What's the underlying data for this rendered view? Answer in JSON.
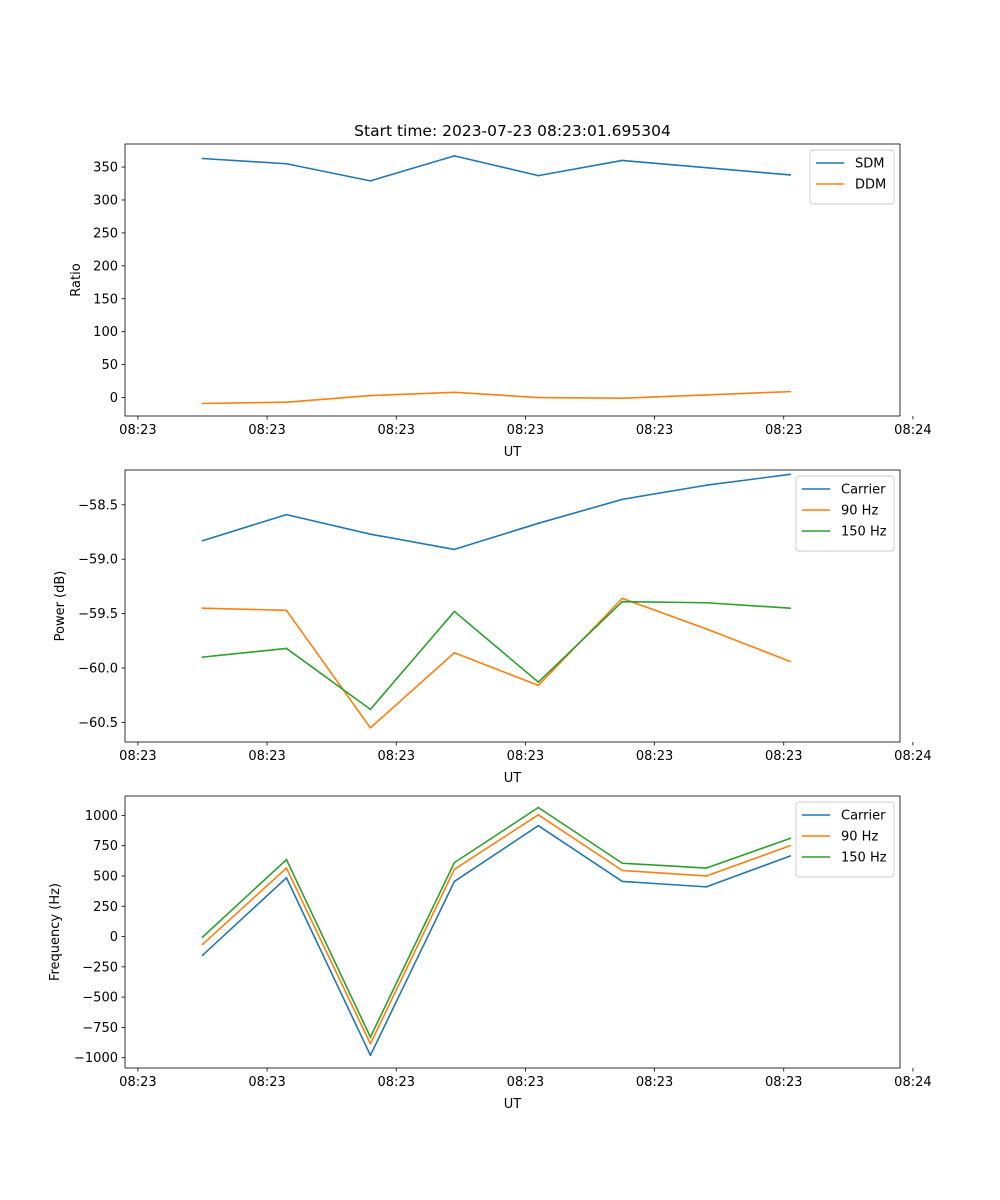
{
  "chart_data": [
    {
      "type": "line",
      "title": "Start time: 2023-07-23 08:23:01.695304",
      "xlabel": "UT",
      "ylabel": "Ratio",
      "x": [
        0.5,
        1.15,
        1.8,
        2.45,
        3.1,
        3.75,
        4.4,
        5.05
      ],
      "xlim": [
        -0.1,
        5.9
      ],
      "x_ticks": [
        0,
        1,
        2,
        3,
        4,
        5,
        6
      ],
      "x_tick_labels": [
        "08:23",
        "08:23",
        "08:23",
        "08:23",
        "08:23",
        "08:23",
        "08:24"
      ],
      "ylim": [
        -28,
        385
      ],
      "y_ticks": [
        0,
        50,
        100,
        150,
        200,
        250,
        300,
        350
      ],
      "y_tick_labels": [
        "0",
        "50",
        "100",
        "150",
        "200",
        "250",
        "300",
        "350"
      ],
      "legend": "top-right",
      "series": [
        {
          "name": "SDM",
          "color": "#1f77b4",
          "values": [
            363,
            355,
            329,
            367,
            337,
            360,
            349,
            338
          ]
        },
        {
          "name": "DDM",
          "color": "#ff7f0e",
          "values": [
            -9,
            -7,
            3,
            8,
            0,
            -1,
            4,
            9
          ]
        }
      ]
    },
    {
      "type": "line",
      "title": "",
      "xlabel": "UT",
      "ylabel": "Power (dB)",
      "x": [
        0.5,
        1.15,
        1.8,
        2.45,
        3.1,
        3.75,
        4.4,
        5.05
      ],
      "xlim": [
        -0.1,
        5.9
      ],
      "x_ticks": [
        0,
        1,
        2,
        3,
        4,
        5,
        6
      ],
      "x_tick_labels": [
        "08:23",
        "08:23",
        "08:23",
        "08:23",
        "08:23",
        "08:23",
        "08:24"
      ],
      "ylim": [
        -60.68,
        -58.18
      ],
      "y_ticks": [
        -60.5,
        -60.0,
        -59.5,
        -59.0,
        -58.5
      ],
      "y_tick_labels": [
        "−60.5",
        "−60.0",
        "−59.5",
        "−59.0",
        "−58.5"
      ],
      "legend": "top-right",
      "series": [
        {
          "name": "Carrier",
          "color": "#1f77b4",
          "values": [
            -58.83,
            -58.59,
            -58.77,
            -58.91,
            -58.67,
            -58.45,
            -58.32,
            -58.22
          ]
        },
        {
          "name": "90 Hz",
          "color": "#ff7f0e",
          "values": [
            -59.45,
            -59.47,
            -60.55,
            -59.86,
            -60.16,
            -59.36,
            -59.64,
            -59.94
          ]
        },
        {
          "name": "150 Hz",
          "color": "#2ca02c",
          "values": [
            -59.9,
            -59.82,
            -60.38,
            -59.48,
            -60.13,
            -59.39,
            -59.4,
            -59.45
          ]
        }
      ]
    },
    {
      "type": "line",
      "title": "",
      "xlabel": "UT",
      "ylabel": "Frequency (Hz)",
      "x": [
        0.5,
        1.15,
        1.8,
        2.45,
        3.1,
        3.75,
        4.4,
        5.05
      ],
      "xlim": [
        -0.1,
        5.9
      ],
      "x_ticks": [
        0,
        1,
        2,
        3,
        4,
        5,
        6
      ],
      "x_tick_labels": [
        "08:23",
        "08:23",
        "08:23",
        "08:23",
        "08:23",
        "08:23",
        "08:24"
      ],
      "ylim": [
        -1085,
        1160
      ],
      "y_ticks": [
        -1000,
        -750,
        -500,
        -250,
        0,
        250,
        500,
        750,
        1000
      ],
      "y_tick_labels": [
        "−1000",
        "−750",
        "−500",
        "−250",
        "0",
        "250",
        "500",
        "750",
        "1000"
      ],
      "legend": "top-right",
      "series": [
        {
          "name": "Carrier",
          "color": "#1f77b4",
          "values": [
            -155,
            485,
            -980,
            455,
            915,
            455,
            410,
            665
          ]
        },
        {
          "name": "90 Hz",
          "color": "#ff7f0e",
          "values": [
            -65,
            565,
            -885,
            555,
            1005,
            545,
            500,
            750
          ]
        },
        {
          "name": "150 Hz",
          "color": "#2ca02c",
          "values": [
            -5,
            635,
            -830,
            610,
            1065,
            605,
            565,
            810
          ]
        }
      ]
    }
  ]
}
